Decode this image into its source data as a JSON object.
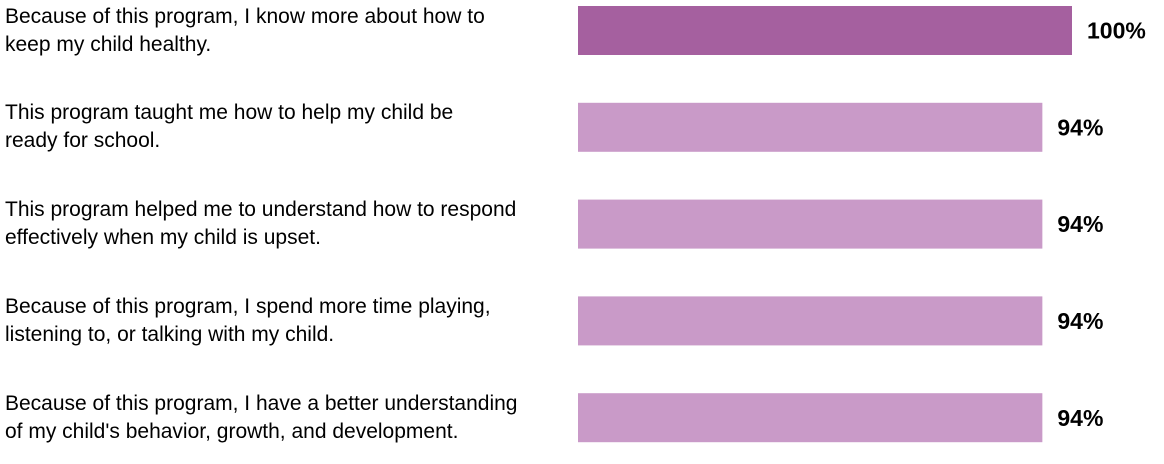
{
  "chart_data": {
    "type": "bar",
    "orientation": "horizontal",
    "categories": [
      "Because of this program, I know more about how to keep my child healthy.",
      "This program taught me how to help my child be ready for school.",
      "This program helped me to understand how to respond effectively when my child is upset.",
      "Because of this program, I spend more time playing, listening to, or talking with my child.",
      "Because of this program, I have a better understanding of my child's behavior, growth, and development."
    ],
    "values": [
      100,
      94,
      94,
      94,
      94
    ],
    "value_labels": [
      "100%",
      "94%",
      "94%",
      "94%",
      "94%"
    ],
    "colors": [
      "#a5609f",
      "#c99ac8",
      "#c99ac8",
      "#c99ac8",
      "#c99ac8"
    ],
    "xlim": [
      0,
      100
    ]
  }
}
